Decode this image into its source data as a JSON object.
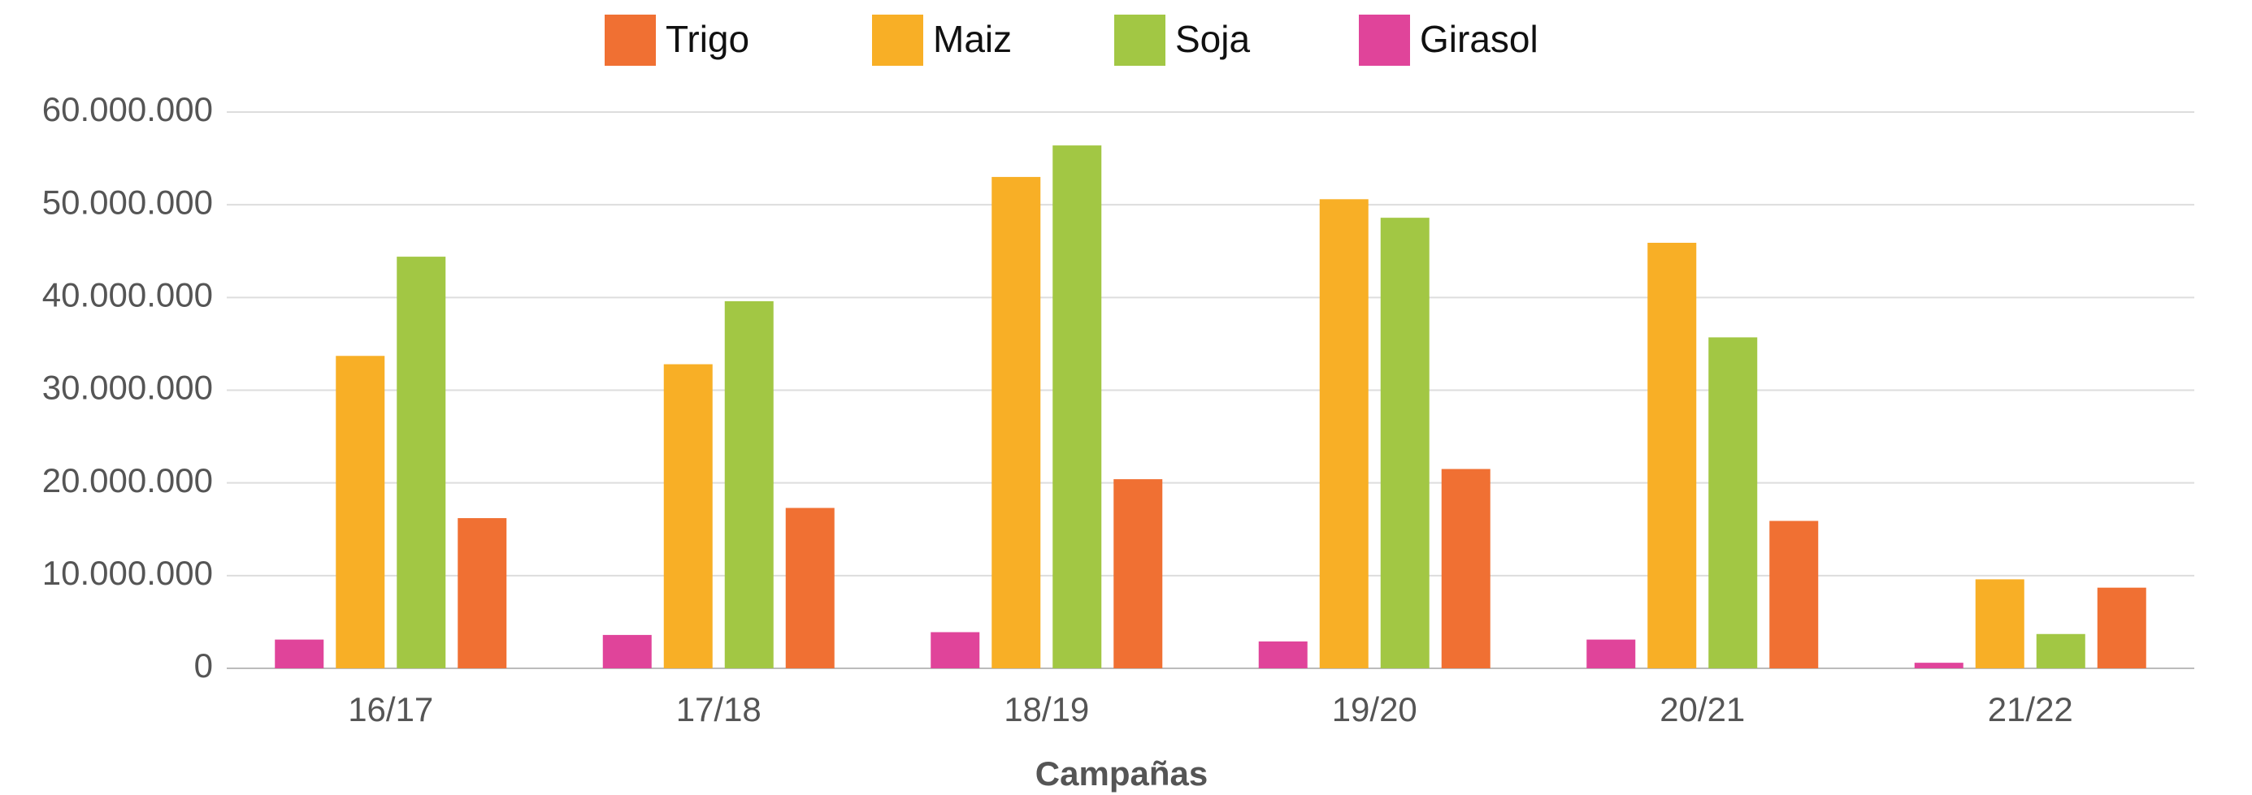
{
  "chart_data": {
    "type": "bar",
    "x_label": "Campañas",
    "categories": [
      "16/17",
      "17/18",
      "18/19",
      "19/20",
      "20/21",
      "21/22"
    ],
    "series": [
      {
        "name": "Trigo",
        "color": "#f07033",
        "values": [
          16200000,
          17300000,
          20400000,
          21500000,
          15900000,
          8700000
        ]
      },
      {
        "name": "Maiz",
        "color": "#f8af26",
        "values": [
          33700000,
          32800000,
          53000000,
          50600000,
          45900000,
          9600000
        ]
      },
      {
        "name": "Soja",
        "color": "#a2c744",
        "values": [
          44400000,
          39600000,
          56400000,
          48600000,
          35700000,
          3700000
        ]
      },
      {
        "name": "Girasol",
        "color": "#e0449a",
        "values": [
          3100000,
          3600000,
          3900000,
          2900000,
          3100000,
          600000
        ]
      }
    ],
    "ylim": [
      0,
      60000000
    ],
    "yticks": [
      0,
      {
        "value": 10000000,
        "label": "10.000.000"
      },
      {
        "value": 20000000,
        "label": "20.000.000"
      },
      {
        "value": 30000000,
        "label": "30.000.000"
      },
      {
        "value": 40000000,
        "label": "40.000.000"
      },
      {
        "value": 50000000,
        "label": "50.000.000"
      },
      {
        "value": 60000000,
        "label": "60.000.000"
      }
    ],
    "grid": true
  }
}
